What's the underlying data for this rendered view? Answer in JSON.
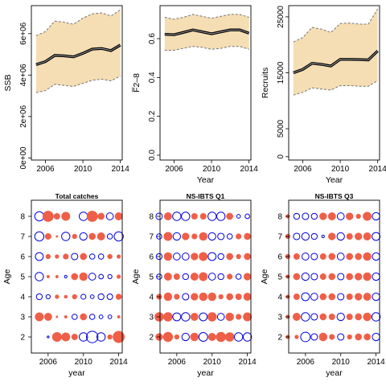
{
  "colors": {
    "band": "#f5deb3",
    "line": "#000000",
    "inner_line": "#9a9a9a",
    "bound_line": "#777777",
    "positive": "#ef5f48",
    "negative": "#0000dd",
    "frame": "#000000"
  },
  "chart_data": [
    {
      "type": "line",
      "id": "ssb",
      "title": "",
      "xlabel": "",
      "ylabel": "SSB",
      "x": [
        2005,
        2006,
        2007,
        2008,
        2009,
        2010,
        2011,
        2012,
        2013,
        2014
      ],
      "series": [
        {
          "role": "estimate",
          "values": [
            4500000,
            4650000,
            4950000,
            4930000,
            4880000,
            5050000,
            5250000,
            5280000,
            5180000,
            5450000
          ]
        },
        {
          "role": "upper",
          "values": [
            5900000,
            6100000,
            6600000,
            6550000,
            6450000,
            6750000,
            6950000,
            7000000,
            6850000,
            7150000
          ]
        },
        {
          "role": "lower",
          "values": [
            3150000,
            3250000,
            3550000,
            3500000,
            3450000,
            3600000,
            3750000,
            3800000,
            3720000,
            3950000
          ]
        }
      ],
      "xlim": [
        2004.5,
        2014.2
      ],
      "ylim": [
        -100000,
        7350000
      ],
      "xticks": [
        2006,
        2010,
        2014
      ],
      "xticklabels": [
        "2006",
        "2010",
        "2014"
      ],
      "yticks": [
        0,
        2000000,
        4000000,
        6000000
      ],
      "yticklabels": [
        "0e+00",
        "2e+06",
        "4e+06",
        "6e+06"
      ]
    },
    {
      "type": "line",
      "id": "fbar",
      "title": "",
      "xlabel": "Year",
      "ylabel": "F̅2–8",
      "x": [
        2005,
        2006,
        2007,
        2008,
        2009,
        2010,
        2011,
        2012,
        2013,
        2014
      ],
      "series": [
        {
          "role": "estimate",
          "values": [
            0.622,
            0.62,
            0.632,
            0.645,
            0.635,
            0.625,
            0.635,
            0.645,
            0.645,
            0.628
          ]
        },
        {
          "role": "upper",
          "values": [
            0.71,
            0.7,
            0.71,
            0.725,
            0.715,
            0.705,
            0.715,
            0.725,
            0.725,
            0.71
          ]
        },
        {
          "role": "lower",
          "values": [
            0.54,
            0.54,
            0.55,
            0.56,
            0.555,
            0.545,
            0.55,
            0.56,
            0.56,
            0.545
          ]
        }
      ],
      "xlim": [
        2004.5,
        2014.2
      ],
      "ylim": [
        -0.025,
        0.77
      ],
      "xticks": [
        2006,
        2010,
        2014
      ],
      "xticklabels": [
        "2006",
        "2010",
        "2014"
      ],
      "yticks": [
        0.0,
        0.2,
        0.4,
        0.6
      ],
      "yticklabels": [
        "0.0",
        "0.2",
        "0.4",
        "0.6"
      ]
    },
    {
      "type": "line",
      "id": "recruits",
      "title": "",
      "xlabel": "Year",
      "ylabel": "Recruits",
      "x": [
        2005,
        2006,
        2007,
        2008,
        2009,
        2010,
        2011,
        2012,
        2013,
        2014
      ],
      "series": [
        {
          "role": "estimate",
          "values": [
            15000,
            15600,
            16700,
            16500,
            16200,
            17400,
            17400,
            17350,
            17300,
            18900
          ]
        },
        {
          "role": "upper",
          "values": [
            20500,
            21300,
            23100,
            22800,
            22200,
            23800,
            23900,
            23700,
            23700,
            26400
          ]
        },
        {
          "role": "lower",
          "values": [
            11000,
            11500,
            12300,
            12100,
            11900,
            12700,
            12700,
            12600,
            12600,
            13600
          ]
        }
      ],
      "xlim": [
        2004.5,
        2014.2
      ],
      "ylim": [
        -600,
        27000
      ],
      "xticks": [
        2006,
        2010,
        2014
      ],
      "xticklabels": [
        "2006",
        "2010",
        "2014"
      ],
      "yticks": [
        0,
        5000,
        15000,
        25000
      ],
      "yticklabels": [
        "0",
        "5000",
        "15000",
        "25000"
      ]
    },
    {
      "type": "scatter",
      "id": "total-catches",
      "title": "Total catches",
      "xlabel": "year",
      "ylabel": "Age",
      "x": [
        2004,
        2005,
        2006,
        2007,
        2008,
        2009,
        2010,
        2011,
        2012,
        2013,
        2014
      ],
      "ages": [
        2,
        3,
        4,
        5,
        6,
        7,
        8
      ],
      "residuals": [
        [
          0,
          0,
          -0.05,
          1.2,
          1.0,
          0.5,
          -1.0,
          -1.9,
          -1.0,
          0.3,
          1.9
        ],
        [
          0,
          1.0,
          0.8,
          0.05,
          0.1,
          -0.4,
          0.6,
          -0.4,
          -0.2,
          -0.2,
          0.1
        ],
        [
          0,
          -0.5,
          -0.25,
          0.2,
          0.15,
          0.3,
          -0.35,
          -0.2,
          -0.5,
          -0.45,
          0.45
        ],
        [
          0,
          -1.0,
          0.1,
          0.1,
          -0.1,
          0.6,
          0.9,
          -0.7,
          -0.3,
          -0.25,
          0.2
        ],
        [
          0,
          -0.9,
          0.3,
          0.2,
          0.4,
          -0.6,
          0.6,
          -0.4,
          -0.4,
          0.3,
          0.2
        ],
        [
          0,
          -1.2,
          0.5,
          0.05,
          -1.0,
          0.3,
          -0.8,
          0.6,
          0.8,
          -0.4,
          -1.2
        ],
        [
          0,
          -1.2,
          1.6,
          0.5,
          1.0,
          0.0,
          -1.0,
          1.6,
          0.6,
          -0.7,
          0.8
        ]
      ],
      "xlim": [
        2004.1,
        2014.4
      ],
      "ylim": [
        1.2,
        8.8
      ],
      "xticks": [
        2006,
        2010,
        2014
      ],
      "xticklabels": [
        "2006",
        "2010",
        "2014"
      ],
      "yticks": [
        2,
        3,
        4,
        5,
        6,
        7,
        8
      ],
      "yticklabels": [
        "2",
        "3",
        "4",
        "5",
        "6",
        "7",
        "8"
      ]
    },
    {
      "type": "scatter",
      "id": "ns-ibts-q1",
      "title": "NS-IBTS Q1",
      "xlabel": "year",
      "ylabel": "Age",
      "x": [
        2004,
        2005,
        2006,
        2007,
        2008,
        2009,
        2010,
        2011,
        2012,
        2013,
        2014
      ],
      "ages": [
        2,
        3,
        4,
        5,
        6,
        7,
        8
      ],
      "residuals": [
        [
          0.7,
          1.3,
          0.3,
          -0.8,
          0.9,
          -1.1,
          0.8,
          1.3,
          1.1,
          -1.0,
          -1.0
        ],
        [
          1.1,
          1.1,
          -0.9,
          -1.0,
          0.8,
          -0.9,
          1.1,
          -0.7,
          0.9,
          0.4,
          1.0
        ],
        [
          0.4,
          0.9,
          0.4,
          -0.6,
          0.7,
          0.9,
          0.9,
          0.3,
          0.6,
          0.5,
          0.8
        ],
        [
          -0.4,
          0.8,
          0.5,
          -0.5,
          0.8,
          1.0,
          -0.7,
          -0.5,
          0.4,
          -0.4,
          0.7
        ],
        [
          -0.5,
          0.9,
          -0.7,
          -0.7,
          0.7,
          1.0,
          -0.9,
          -0.5,
          0.6,
          0.3,
          0.6
        ],
        [
          -0.4,
          1.0,
          -0.8,
          0.7,
          0.4,
          0.9,
          -0.8,
          -0.6,
          -0.4,
          0.4,
          0.6
        ],
        [
          -0.6,
          0.8,
          -1.0,
          -1.0,
          0.5,
          0.5,
          -1.0,
          -1.0,
          0.6,
          -0.2,
          -0.3
        ]
      ],
      "xlim": [
        2004.1,
        2014.4
      ],
      "ylim": [
        1.2,
        8.8
      ],
      "xticks": [
        2006,
        2010,
        2014
      ],
      "xticklabels": [
        "2006",
        "2010",
        "2014"
      ],
      "yticks": [
        2,
        3,
        4,
        5,
        6,
        7,
        8
      ],
      "yticklabels": [
        "2",
        "3",
        "4",
        "5",
        "6",
        "7",
        "8"
      ]
    },
    {
      "type": "scatter",
      "id": "ns-ibts-q3",
      "title": "NS-IBTS Q3",
      "xlabel": "year",
      "ylabel": "Age",
      "x": [
        2004,
        2005,
        2006,
        2007,
        2008,
        2009,
        2010,
        2011,
        2012,
        2013,
        2014
      ],
      "ages": [
        2,
        3,
        4,
        5,
        6,
        7,
        8
      ],
      "residuals": [
        [
          0.2,
          0.2,
          -1.3,
          -0.6,
          0.9,
          0.4,
          -0.6,
          0.3,
          0.6,
          0.6,
          -0.8
        ],
        [
          0.2,
          0.8,
          -1.0,
          -0.6,
          0.6,
          0.5,
          -0.8,
          0.5,
          0.6,
          0.9,
          -1.0
        ],
        [
          0.2,
          0.5,
          -0.9,
          -0.7,
          0.6,
          0.6,
          -0.6,
          0.5,
          0.7,
          0.8,
          -0.8
        ],
        [
          0.2,
          0.6,
          -0.8,
          -0.6,
          0.5,
          0.6,
          -0.6,
          0.6,
          0.7,
          0.9,
          -0.8
        ],
        [
          0.3,
          0.5,
          -0.7,
          -0.6,
          0.5,
          0.6,
          -0.7,
          0.6,
          0.6,
          0.9,
          -0.8
        ],
        [
          0.3,
          -0.6,
          -0.8,
          -0.5,
          -0.1,
          0.7,
          -0.8,
          0.5,
          0.7,
          0.8,
          -0.9
        ],
        [
          0.2,
          -0.5,
          -0.6,
          -0.5,
          0.7,
          0.8,
          -0.7,
          0.7,
          0.3,
          1.0,
          -0.8
        ]
      ],
      "xlim": [
        2004.1,
        2014.4
      ],
      "ylim": [
        1.2,
        8.8
      ],
      "xticks": [
        2006,
        2010,
        2014
      ],
      "xticklabels": [
        "2006",
        "2010",
        "2014"
      ],
      "yticks": [
        2,
        3,
        4,
        5,
        6,
        7,
        8
      ],
      "yticklabels": [
        "2",
        "3",
        "4",
        "5",
        "6",
        "7",
        "8"
      ]
    }
  ]
}
